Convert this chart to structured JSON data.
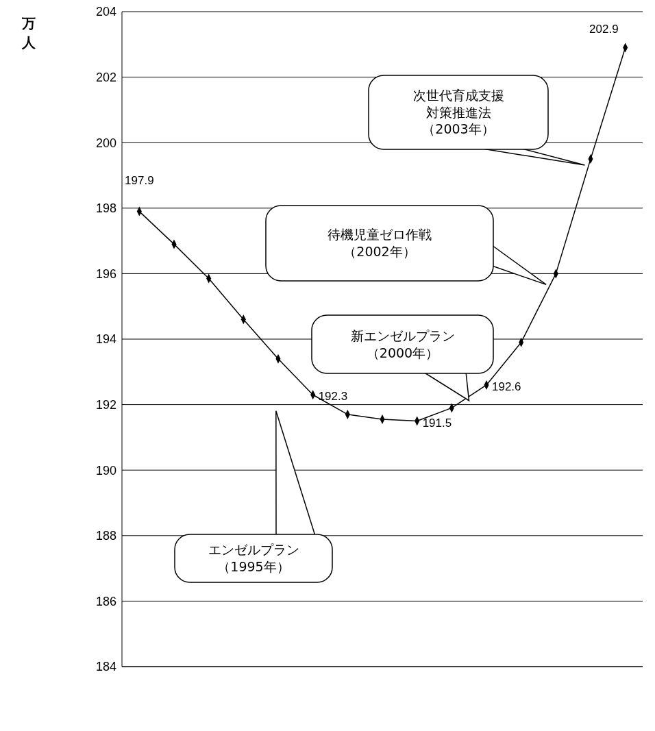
{
  "chart_data": {
    "type": "line",
    "ylabel": "万人",
    "categories": [
      null,
      null,
      null,
      null,
      null,
      null,
      null,
      null,
      null,
      null,
      null,
      null,
      null,
      null,
      null
    ],
    "series": [
      {
        "color": "#000000",
        "values": [
          197.9,
          196.9,
          195.85,
          194.6,
          193.4,
          192.3,
          191.7,
          191.55,
          191.5,
          191.9,
          192.6,
          193.9,
          196.0,
          199.5,
          202.9
        ],
        "value_labels": [
          "197.9",
          null,
          null,
          null,
          null,
          "192.3",
          null,
          null,
          "191.5",
          null,
          "192.6",
          null,
          null,
          null,
          "202.9"
        ]
      }
    ],
    "ylim": [
      184,
      204
    ],
    "yticks": [
      184,
      186,
      188,
      190,
      192,
      194,
      196,
      198,
      200,
      202,
      204
    ],
    "grid": "y",
    "marker": "diamond",
    "line_style": "solid",
    "tick_labels": "y",
    "legend": false,
    "annotations": [
      "エンゼルプラン（1995年）",
      "新エンゼルプラン（2000年）",
      "待機児童ゼロ作戦（2002年）",
      "次世代育成支援対策推進法（2003年）"
    ]
  }
}
